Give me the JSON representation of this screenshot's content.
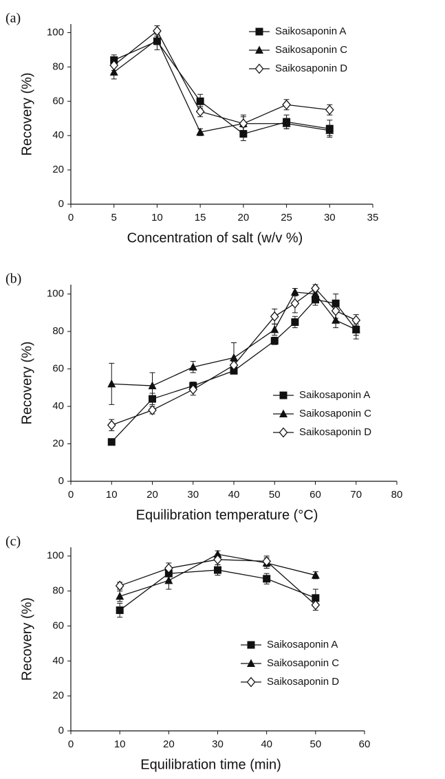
{
  "chart_data": [
    {
      "type": "line",
      "panel_label": "(a)",
      "x_label": "Concentration of salt (w/v %)",
      "y_label": "Recovery (%)",
      "x": [
        5,
        10,
        15,
        20,
        25,
        30
      ],
      "xlim": [
        0,
        35
      ],
      "xticks": [
        0,
        5,
        10,
        15,
        20,
        25,
        30,
        35
      ],
      "ylim": [
        0,
        105
      ],
      "yticks": [
        0,
        20,
        40,
        60,
        80,
        100
      ],
      "legend": "upper right",
      "series": [
        {
          "name": "Saikosaponin A",
          "color": "#111111",
          "marker": "square",
          "values": [
            84,
            95,
            60,
            41,
            48,
            44
          ],
          "errors": [
            3,
            5,
            4,
            4,
            4,
            5
          ]
        },
        {
          "name": "Saikosaponin C",
          "color": "#111111",
          "marker": "triangle",
          "values": [
            77,
            96,
            42,
            47,
            47,
            43
          ],
          "errors": [
            4,
            3,
            2,
            4,
            3,
            3
          ]
        },
        {
          "name": "Saikosaponin D",
          "color": "#111111",
          "marker": "diamond-open",
          "values": [
            81,
            101,
            54,
            47,
            58,
            55
          ],
          "errors": [
            3,
            3,
            3,
            5,
            3,
            3
          ]
        }
      ]
    },
    {
      "type": "line",
      "panel_label": "(b)",
      "x_label": "Equilibration temperature (°C)",
      "y_label": "Recovery (%)",
      "x": [
        10,
        20,
        30,
        40,
        50,
        55,
        60,
        65,
        70
      ],
      "xlim": [
        0,
        80
      ],
      "xticks": [
        0,
        10,
        20,
        30,
        40,
        50,
        60,
        70,
        80
      ],
      "ylim": [
        0,
        105
      ],
      "yticks": [
        0,
        20,
        40,
        60,
        80,
        100
      ],
      "legend": "lower right",
      "series": [
        {
          "name": "Saikosaponin A",
          "color": "#111111",
          "marker": "square",
          "values": [
            21,
            44,
            51,
            59,
            75,
            85,
            97,
            95,
            81
          ],
          "errors": [
            1,
            3,
            2,
            1,
            2,
            3,
            3,
            5,
            5
          ]
        },
        {
          "name": "Saikosaponin C",
          "color": "#111111",
          "marker": "triangle",
          "values": [
            52,
            51,
            61,
            66,
            81,
            101,
            100,
            86,
            81
          ],
          "errors": [
            11,
            7,
            3,
            8,
            3,
            2,
            3,
            4,
            3
          ]
        },
        {
          "name": "Saikosaponin D",
          "color": "#111111",
          "marker": "diamond-open",
          "values": [
            30,
            38,
            49,
            62,
            88,
            95,
            103,
            91,
            86
          ],
          "errors": [
            3,
            2,
            3,
            2,
            4,
            5,
            2,
            4,
            3
          ]
        }
      ]
    },
    {
      "type": "line",
      "panel_label": "(c)",
      "x_label": "Equilibration time (min)",
      "y_label": "Recovery (%)",
      "x": [
        10,
        20,
        30,
        40,
        50
      ],
      "xlim": [
        0,
        60
      ],
      "xticks": [
        0,
        10,
        20,
        30,
        40,
        50,
        60
      ],
      "ylim": [
        0,
        105
      ],
      "yticks": [
        0,
        20,
        40,
        60,
        80,
        100
      ],
      "legend": "lower right",
      "series": [
        {
          "name": "Saikosaponin A",
          "color": "#111111",
          "marker": "square",
          "values": [
            69,
            90,
            92,
            87,
            76
          ],
          "errors": [
            4,
            4,
            3,
            3,
            5
          ]
        },
        {
          "name": "Saikosaponin C",
          "color": "#111111",
          "marker": "triangle",
          "values": [
            77,
            86,
            101,
            96,
            89
          ],
          "errors": [
            3,
            5,
            2,
            3,
            2
          ]
        },
        {
          "name": "Saikosaponin D",
          "color": "#111111",
          "marker": "diamond-open",
          "values": [
            83,
            93,
            98,
            97,
            72
          ],
          "errors": [
            2,
            3,
            3,
            3,
            3
          ]
        }
      ]
    }
  ]
}
